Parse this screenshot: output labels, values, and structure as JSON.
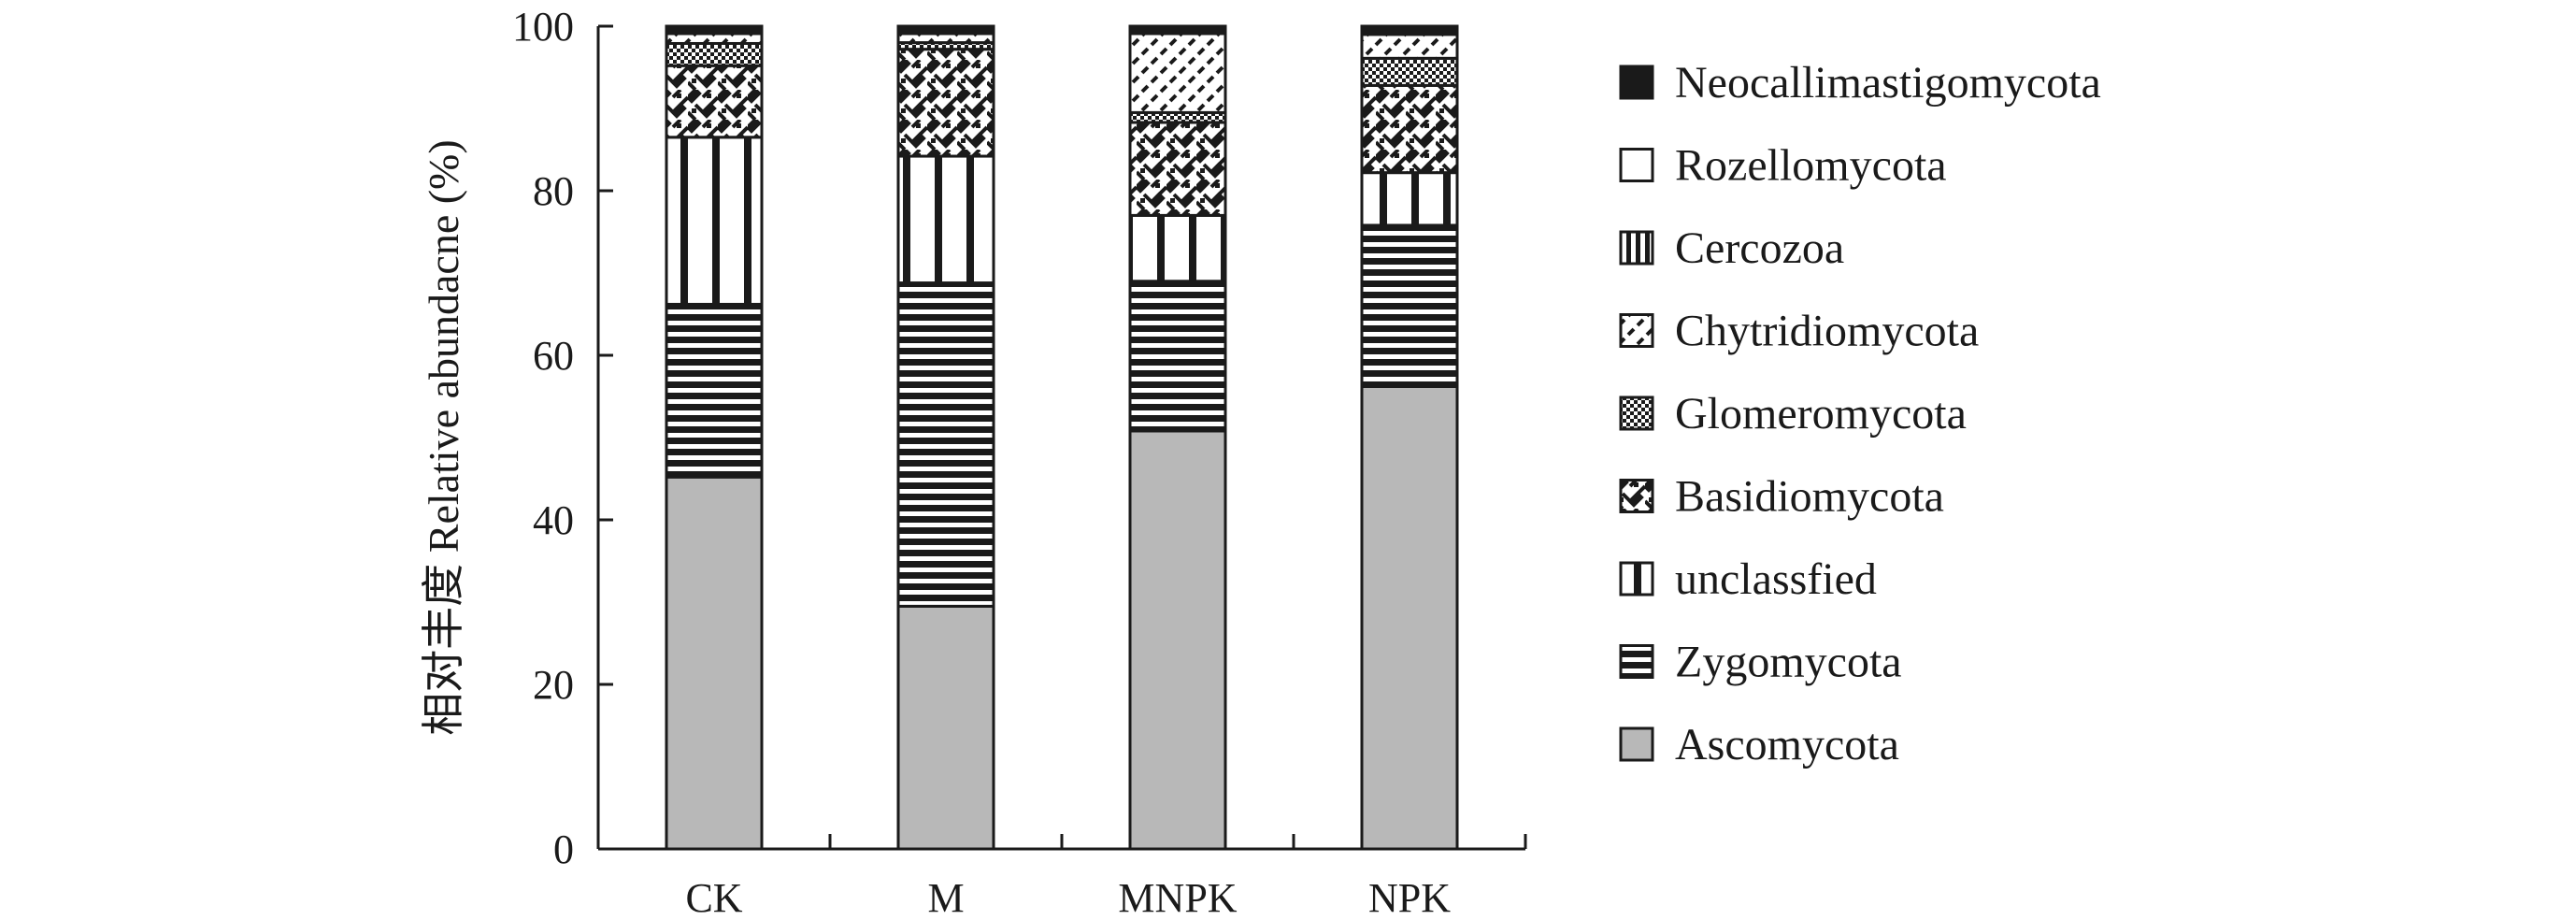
{
  "chart_data": {
    "type": "bar",
    "stacked": true,
    "title": "",
    "xlabel": "",
    "ylabel": "相对丰度 Relative abundacne (%)",
    "ylim": [
      0,
      100
    ],
    "yticks": [
      0,
      20,
      40,
      60,
      80,
      100
    ],
    "categories": [
      "CK",
      "M",
      "MNPK",
      "NPK"
    ],
    "legend_position": "right",
    "series": [
      {
        "name": "Ascomycota",
        "pattern": "solid-gray",
        "values": [
          45.2,
          29.5,
          50.8,
          56.2
        ]
      },
      {
        "name": "Zygomycota",
        "pattern": "horizontal-lines",
        "values": [
          21.0,
          39.3,
          18.2,
          19.6
        ]
      },
      {
        "name": "unclassfied",
        "pattern": "vertical-lines",
        "values": [
          20.3,
          15.4,
          8.0,
          6.4
        ]
      },
      {
        "name": "Basidiomycota",
        "pattern": "checker-diagonal",
        "values": [
          8.7,
          13.0,
          11.3,
          10.6
        ]
      },
      {
        "name": "Glomeromycota",
        "pattern": "dense-checker",
        "values": [
          2.7,
          0.8,
          1.2,
          3.3
        ]
      },
      {
        "name": "Chytridiomycota",
        "pattern": "diagonal-dashes",
        "values": [
          1.2,
          1.1,
          9.6,
          2.9
        ]
      },
      {
        "name": "Cercozoa",
        "pattern": "vertical-bars",
        "values": [
          0.3,
          0.3,
          0.3,
          0.3
        ]
      },
      {
        "name": "Rozellomycota",
        "pattern": "white",
        "values": [
          0.3,
          0.3,
          0.3,
          0.3
        ]
      },
      {
        "name": "Neocallimastigomycota",
        "pattern": "solid-black",
        "values": [
          0.3,
          0.3,
          0.3,
          0.4
        ]
      }
    ],
    "legend": [
      {
        "name": "Neocallimastigomycota",
        "pattern": "solid-black"
      },
      {
        "name": "Rozellomycota",
        "pattern": "white"
      },
      {
        "name": "Cercozoa",
        "pattern": "vertical-bars"
      },
      {
        "name": "Chytridiomycota",
        "pattern": "diagonal-dashes"
      },
      {
        "name": "Glomeromycota",
        "pattern": "dense-checker"
      },
      {
        "name": "Basidiomycota",
        "pattern": "checker-diagonal"
      },
      {
        "name": "unclassfied",
        "pattern": "vertical-lines"
      },
      {
        "name": "Zygomycota",
        "pattern": "horizontal-lines"
      },
      {
        "name": "Ascomycota",
        "pattern": "solid-gray"
      }
    ],
    "colors": {
      "gray": "#b8b8b8",
      "ink": "#1a1a1a",
      "background": "#ffffff"
    }
  }
}
